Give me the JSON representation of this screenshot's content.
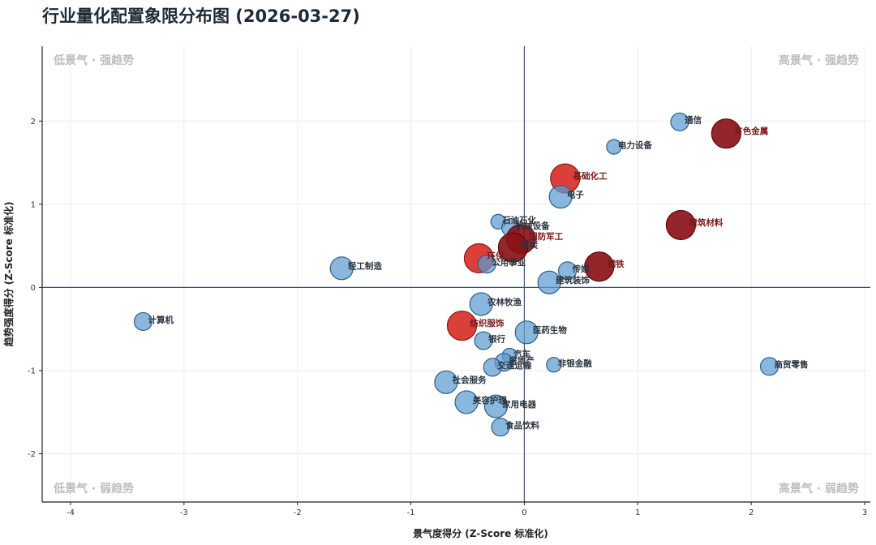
{
  "title": "行业量化配置象限分布图 (2026-03-27)",
  "chart_data": {
    "type": "scatter",
    "title": "行业量化配置象限分布图 (2026-03-27)",
    "xlabel": "景气度得分 (Z-Score 标准化)",
    "ylabel": "趋势强度得分 (Z-Score 标准化)",
    "xlim": [
      -4.25,
      3.05
    ],
    "ylim": [
      -2.58,
      2.9
    ],
    "xticks": [
      -4,
      -3,
      -2,
      -1,
      0,
      1,
      2,
      3
    ],
    "yticks": [
      -2,
      -1,
      0,
      1,
      2
    ],
    "grid": true,
    "reference_lines": {
      "x": 0,
      "y": 0
    },
    "quadrant_labels": {
      "top_left": "低景气 · 强趋势",
      "top_right": "高景气 · 强趋势",
      "bottom_left": "低景气 · 弱趋势",
      "bottom_right": "高景气 · 弱趋势"
    },
    "colors": {
      "blue_fill": "#5b9bd0",
      "blue_edge": "#2e5f8a",
      "red_fill": "#d62a24",
      "dark_red_fill": "#8b1218",
      "axis_line": "#3a5270",
      "label_normal": "#2b3440",
      "label_highlight": "#7a1a1a"
    },
    "points": [
      {
        "name": "通信",
        "x": 1.37,
        "y": 1.99,
        "size": 1,
        "color": "blue",
        "highlight": false
      },
      {
        "name": "有色金属",
        "x": 1.78,
        "y": 1.85,
        "size": 3,
        "color": "dark_red",
        "highlight": true
      },
      {
        "name": "电力设备",
        "x": 0.79,
        "y": 1.69,
        "size": 0,
        "color": "blue",
        "highlight": false
      },
      {
        "name": "基础化工",
        "x": 0.36,
        "y": 1.31,
        "size": 3,
        "color": "red",
        "highlight": true
      },
      {
        "name": "电子",
        "x": 0.32,
        "y": 1.09,
        "size": 2,
        "color": "blue",
        "highlight": false
      },
      {
        "name": "建筑材料",
        "x": 1.38,
        "y": 0.75,
        "size": 3,
        "color": "dark_red",
        "highlight": true
      },
      {
        "name": "石油石化",
        "x": -0.23,
        "y": 0.79,
        "size": 0,
        "color": "blue",
        "highlight": false
      },
      {
        "name": "机械设备",
        "x": -0.12,
        "y": 0.72,
        "size": 1,
        "color": "blue",
        "highlight": false
      },
      {
        "name": "国防军工",
        "x": -0.03,
        "y": 0.58,
        "size": 3,
        "color": "dark_red",
        "highlight": true
      },
      {
        "name": "煤炭",
        "x": -0.1,
        "y": 0.48,
        "size": 3,
        "color": "dark_red",
        "highlight": false
      },
      {
        "name": "环保",
        "x": -0.4,
        "y": 0.35,
        "size": 3,
        "color": "red",
        "highlight": true
      },
      {
        "name": "公用事业",
        "x": -0.33,
        "y": 0.28,
        "size": 1,
        "color": "blue",
        "highlight": false
      },
      {
        "name": "轻工制造",
        "x": -1.61,
        "y": 0.23,
        "size": 2,
        "color": "blue",
        "highlight": false
      },
      {
        "name": "传媒",
        "x": 0.38,
        "y": 0.2,
        "size": 1,
        "color": "blue",
        "highlight": false
      },
      {
        "name": "钢铁",
        "x": 0.66,
        "y": 0.25,
        "size": 3,
        "color": "dark_red",
        "highlight": true
      },
      {
        "name": "建筑装饰",
        "x": 0.22,
        "y": 0.06,
        "size": 2,
        "color": "blue",
        "highlight": false
      },
      {
        "name": "农林牧渔",
        "x": -0.38,
        "y": -0.2,
        "size": 2,
        "color": "blue",
        "highlight": false
      },
      {
        "name": "计算机",
        "x": -3.36,
        "y": -0.41,
        "size": 1,
        "color": "blue",
        "highlight": false
      },
      {
        "name": "纺织服饰",
        "x": -0.55,
        "y": -0.46,
        "size": 3,
        "color": "red",
        "highlight": true
      },
      {
        "name": "医药生物",
        "x": 0.02,
        "y": -0.54,
        "size": 2,
        "color": "blue",
        "highlight": false
      },
      {
        "name": "银行",
        "x": -0.36,
        "y": -0.64,
        "size": 1,
        "color": "blue",
        "highlight": false
      },
      {
        "name": "汽车",
        "x": -0.13,
        "y": -0.82,
        "size": 0,
        "color": "blue",
        "highlight": false
      },
      {
        "name": "房地产",
        "x": -0.18,
        "y": -0.9,
        "size": 1,
        "color": "blue",
        "highlight": false
      },
      {
        "name": "非银金融",
        "x": 0.26,
        "y": -0.93,
        "size": 0,
        "color": "blue",
        "highlight": false
      },
      {
        "name": "交通运输",
        "x": -0.28,
        "y": -0.96,
        "size": 1,
        "color": "blue",
        "highlight": false
      },
      {
        "name": "商贸零售",
        "x": 2.16,
        "y": -0.95,
        "size": 1,
        "color": "blue",
        "highlight": false
      },
      {
        "name": "社会服务",
        "x": -0.69,
        "y": -1.14,
        "size": 2,
        "color": "blue",
        "highlight": false
      },
      {
        "name": "美容护理",
        "x": -0.51,
        "y": -1.38,
        "size": 2,
        "color": "blue",
        "highlight": false
      },
      {
        "name": "家用电器",
        "x": -0.25,
        "y": -1.43,
        "size": 2,
        "color": "blue",
        "highlight": false
      },
      {
        "name": "食品饮料",
        "x": -0.21,
        "y": -1.68,
        "size": 1,
        "color": "blue",
        "highlight": false
      }
    ]
  }
}
